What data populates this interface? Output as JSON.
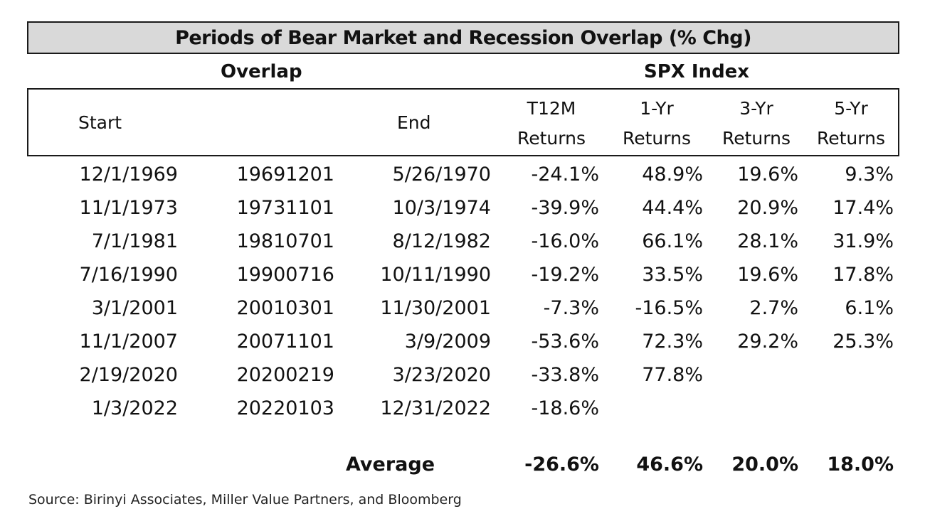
{
  "title": "Periods of Bear Market and Recession Overlap (% Chg)",
  "groups": {
    "overlap": "Overlap",
    "spx": "SPX Index"
  },
  "columns": {
    "start": "Start",
    "end": "End",
    "t12m_top": "T12M",
    "t12m_bottom": "Returns",
    "y1_top": "1-Yr",
    "y1_bottom": "Returns",
    "y3_top": "3-Yr",
    "y3_bottom": "Returns",
    "y5_top": "5-Yr",
    "y5_bottom": "Returns"
  },
  "rows": [
    {
      "start": "12/1/1969",
      "code": "19691201",
      "end": "5/26/1970",
      "t12m": "-24.1%",
      "y1": "48.9%",
      "y3": "19.6%",
      "y5": "9.3%"
    },
    {
      "start": "11/1/1973",
      "code": "19731101",
      "end": "10/3/1974",
      "t12m": "-39.9%",
      "y1": "44.4%",
      "y3": "20.9%",
      "y5": "17.4%"
    },
    {
      "start": "7/1/1981",
      "code": "19810701",
      "end": "8/12/1982",
      "t12m": "-16.0%",
      "y1": "66.1%",
      "y3": "28.1%",
      "y5": "31.9%"
    },
    {
      "start": "7/16/1990",
      "code": "19900716",
      "end": "10/11/1990",
      "t12m": "-19.2%",
      "y1": "33.5%",
      "y3": "19.6%",
      "y5": "17.8%"
    },
    {
      "start": "3/1/2001",
      "code": "20010301",
      "end": "11/30/2001",
      "t12m": "-7.3%",
      "y1": "-16.5%",
      "y3": "2.7%",
      "y5": "6.1%"
    },
    {
      "start": "11/1/2007",
      "code": "20071101",
      "end": "3/9/2009",
      "t12m": "-53.6%",
      "y1": "72.3%",
      "y3": "29.2%",
      "y5": "25.3%"
    },
    {
      "start": "2/19/2020",
      "code": "20200219",
      "end": "3/23/2020",
      "t12m": "-33.8%",
      "y1": "77.8%",
      "y3": "",
      "y5": ""
    },
    {
      "start": "1/3/2022",
      "code": "20220103",
      "end": "12/31/2022",
      "t12m": "-18.6%",
      "y1": "",
      "y3": "",
      "y5": ""
    }
  ],
  "average": {
    "label": "Average",
    "t12m": "-26.6%",
    "y1": "46.6%",
    "y3": "20.0%",
    "y5": "18.0%"
  },
  "source": "Source: Birinyi Associates, Miller Value Partners, and Bloomberg"
}
